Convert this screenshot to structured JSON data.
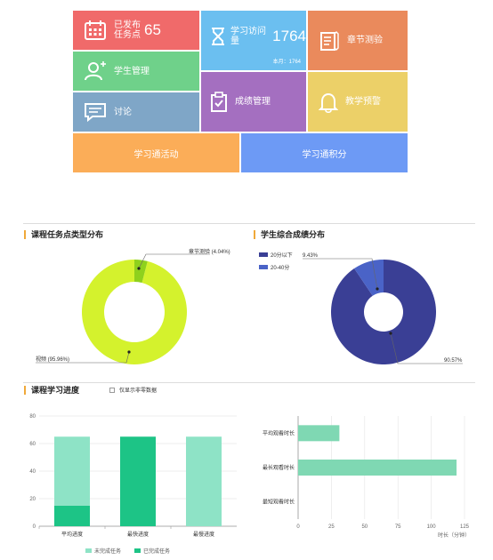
{
  "tiles": {
    "published": {
      "label1": "已发布",
      "label2": "任务点",
      "count": "65"
    },
    "visits": {
      "label": "学习访问量",
      "count": "1764",
      "sub": "本月：1764"
    },
    "quiz": {
      "label": "章节测验"
    },
    "students": {
      "label": "学生管理"
    },
    "grades": {
      "label": "成绩管理"
    },
    "warning": {
      "label": "教学预警"
    },
    "discussion": {
      "label": "讨论"
    },
    "activities": {
      "label": "学习通活动"
    },
    "points": {
      "label": "学习通积分"
    }
  },
  "colors": {
    "published": "#f06a6a",
    "visits": "#6bbff0",
    "quiz": "#ea8a5c",
    "students": "#6fd18a",
    "grades": "#a46fc0",
    "warning": "#ecd068",
    "discussion": "#7fa6c7",
    "activities": "#fbad58",
    "points": "#6d9af5"
  },
  "task_types": {
    "title": "课程任务点类型分布",
    "chart_data": {
      "type": "pie",
      "slices": [
        {
          "label": "章节测验 (4.04%)",
          "value": 4.04,
          "color": "#8fd11d"
        },
        {
          "label": "视频 (95.96%)",
          "value": 95.96,
          "color": "#d4f22d"
        }
      ]
    }
  },
  "grade_dist": {
    "title": "学生综合成绩分布",
    "legend": [
      {
        "label": "20分以下",
        "color": "#3a3f95"
      },
      {
        "label": "20-40分",
        "color": "#4a63c7"
      }
    ],
    "chart_data": {
      "type": "pie",
      "slices": [
        {
          "label": "9.43%",
          "value": 9.43,
          "color": "#4a63c7"
        },
        {
          "label": "90.57%",
          "value": 90.57,
          "color": "#3a3f95"
        }
      ]
    }
  },
  "progress": {
    "title": "课程学习进度",
    "checkbox_label": "仅显示非零数据",
    "bar_chart": {
      "type": "bar",
      "categories": [
        "平均进度",
        "最快进度",
        "最慢进度"
      ],
      "series": [
        {
          "name": "已完成任务",
          "values": [
            15,
            65,
            0
          ],
          "color": "#1dc486"
        },
        {
          "name": "未完成任务",
          "values": [
            50,
            0,
            65
          ],
          "color": "#8ee3c6"
        }
      ],
      "yticks": [
        "0",
        "20",
        "40",
        "60",
        "80"
      ],
      "ylim": [
        0,
        80
      ]
    },
    "legend": [
      {
        "label": "未完成任务",
        "color": "#8ee3c6"
      },
      {
        "label": "已完成任务",
        "color": "#1dc486"
      }
    ],
    "hbar_chart": {
      "type": "bar",
      "categories": [
        "平均观看时长",
        "最长观看时长",
        "最短观看时长"
      ],
      "values": [
        31,
        119,
        0
      ],
      "xticks": [
        "0",
        "25",
        "50",
        "75",
        "100",
        "125"
      ],
      "xlim": [
        0,
        125
      ],
      "xlabel": "时长（分钟）",
      "color": "#7fd8b3"
    }
  }
}
